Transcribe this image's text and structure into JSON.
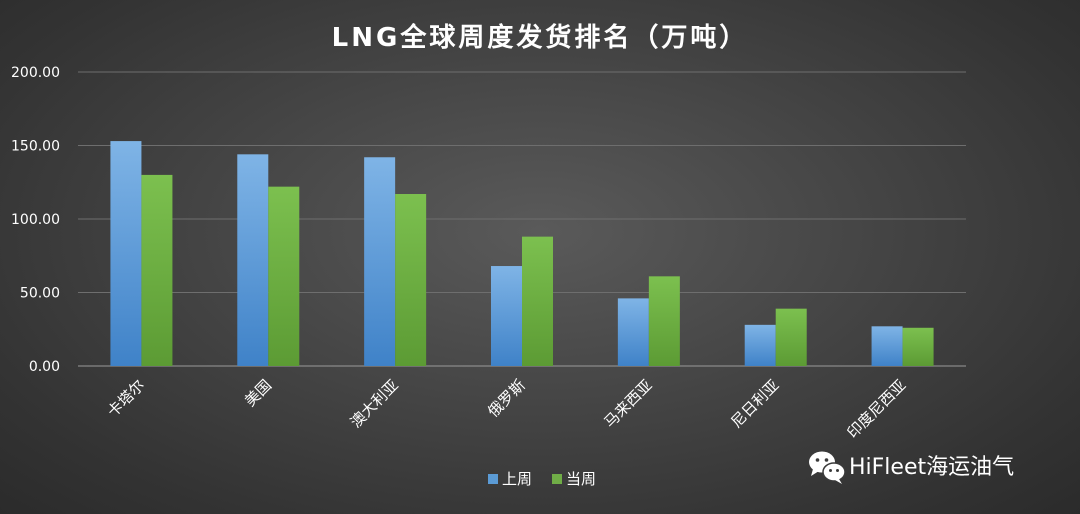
{
  "chart_data": {
    "type": "bar",
    "title": "LNG全球周度发货排名（万吨）",
    "xlabel": "",
    "ylabel": "",
    "ylim": [
      0,
      200
    ],
    "yticks": [
      "0.00",
      "50.00",
      "100.00",
      "150.00",
      "200.00"
    ],
    "grid": true,
    "legend_position": "bottom",
    "categories": [
      "卡塔尔",
      "美国",
      "澳大利亚",
      "俄罗斯",
      "马来西亚",
      "尼日利亚",
      "印度尼西亚"
    ],
    "series": [
      {
        "name": "上周",
        "color": "#5b9bd5",
        "values": [
          153,
          144,
          142,
          68,
          46,
          28,
          27
        ]
      },
      {
        "name": "当周",
        "color": "#70ad47",
        "values": [
          130,
          122,
          117,
          88,
          61,
          39,
          26
        ]
      }
    ]
  },
  "watermark": {
    "text": "HiFleet海运油气",
    "icon": "wechat-icon"
  }
}
